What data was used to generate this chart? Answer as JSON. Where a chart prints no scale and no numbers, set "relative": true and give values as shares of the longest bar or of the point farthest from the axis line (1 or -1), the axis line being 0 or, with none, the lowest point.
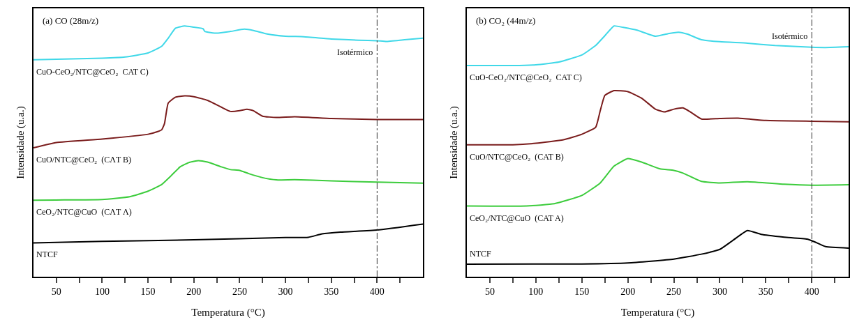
{
  "chart_data": [
    {
      "type": "line",
      "relative": true,
      "title": "(a) CO (28m/z)",
      "xlabel": "Temperatura (°C)",
      "ylabel": "Intensidade (u.a.)",
      "xlim": [
        25,
        450
      ],
      "xticks": [
        50,
        {
          "value": 75,
          "label": null
        },
        100,
        {
          "value": 125,
          "label": null
        },
        150,
        {
          "value": 175,
          "label": null
        },
        200,
        {
          "value": 225,
          "label": null
        },
        250,
        {
          "value": 275,
          "label": null
        },
        300,
        {
          "value": 325,
          "label": null
        },
        350,
        {
          "value": 375,
          "label": null
        },
        400,
        {
          "value": 425,
          "label": null
        }
      ],
      "grid": false,
      "legend": false,
      "marker": "none",
      "line_style": "solid",
      "ref_lines": [
        {
          "axis": "x",
          "value": 400,
          "label": "Isotérmico",
          "line_style": "dashed",
          "color": "#333333"
        }
      ],
      "series": [
        {
          "name": "CuO-CeO₂/NTC@CeO₂  CAT C)",
          "color": "#40d8e8",
          "x": [
            25,
            50,
            100,
            125,
            150,
            165,
            172,
            180,
            190,
            200,
            210,
            212,
            225,
            240,
            255,
            265,
            280,
            300,
            320,
            350,
            380,
            400,
            410,
            430,
            450
          ],
          "values": [
            0.865,
            0.867,
            0.871,
            0.876,
            0.892,
            0.919,
            0.951,
            0.991,
            1,
            0.995,
            0.989,
            0.978,
            0.971,
            0.978,
            0.987,
            0.982,
            0.968,
            0.959,
            0.957,
            0.948,
            0.943,
            0.941,
            0.938,
            0.945,
            0.951
          ]
        },
        {
          "name": "CuO/NTC@CeO₂  (CΛT B)",
          "color": "#7a1c1c",
          "x": [
            25,
            50,
            100,
            150,
            160,
            165,
            168,
            172,
            180,
            190,
            200,
            215,
            230,
            240,
            250,
            258,
            265,
            275,
            290,
            310,
            350,
            400,
            450
          ],
          "values": [
            0.514,
            0.535,
            0.549,
            0.568,
            0.578,
            0.586,
            0.611,
            0.692,
            0.716,
            0.721,
            0.718,
            0.703,
            0.676,
            0.659,
            0.662,
            0.668,
            0.662,
            0.64,
            0.635,
            0.638,
            0.631,
            0.627,
            0.627
          ]
        },
        {
          "name": "CeO₂/NTC@CuO  (CΛT Λ)",
          "color": "#3ccc3c",
          "x": [
            25,
            50,
            100,
            130,
            150,
            165,
            175,
            185,
            195,
            205,
            215,
            230,
            240,
            250,
            260,
            275,
            290,
            310,
            350,
            400,
            450
          ],
          "values": [
            0.305,
            0.306,
            0.308,
            0.319,
            0.341,
            0.368,
            0.402,
            0.438,
            0.456,
            0.463,
            0.457,
            0.438,
            0.427,
            0.424,
            0.411,
            0.395,
            0.386,
            0.387,
            0.382,
            0.377,
            0.373
          ]
        },
        {
          "name": "NTCF",
          "color": "#000000",
          "x": [
            25,
            100,
            200,
            300,
            325,
            340,
            360,
            400,
            450
          ],
          "values": [
            0.135,
            0.141,
            0.147,
            0.156,
            0.157,
            0.171,
            0.178,
            0.186,
            0.21
          ]
        }
      ]
    },
    {
      "type": "line",
      "relative": true,
      "title": "(b) CO₂ (44m/z)",
      "xlabel": "Temperatura (°C)",
      "ylabel": "Intensidade (u.a.)",
      "xlim": [
        25,
        440
      ],
      "xticks": [
        50,
        {
          "value": 75,
          "label": null
        },
        100,
        {
          "value": 125,
          "label": null
        },
        150,
        {
          "value": 175,
          "label": null
        },
        200,
        {
          "value": 225,
          "label": null
        },
        250,
        {
          "value": 275,
          "label": null
        },
        300,
        {
          "value": 325,
          "label": null
        },
        350,
        {
          "value": 375,
          "label": null
        },
        400,
        {
          "value": 425,
          "label": null
        }
      ],
      "grid": false,
      "legend": false,
      "marker": "none",
      "line_style": "solid",
      "ref_lines": [
        {
          "axis": "x",
          "value": 400,
          "label": "Isotérmico",
          "line_style": "dashed",
          "color": "#333333"
        }
      ],
      "series": [
        {
          "name": "CuO-CeO₂/NTC@CeO₂  CAT C)",
          "color": "#40d8e8",
          "x": [
            25,
            75,
            100,
            125,
            150,
            165,
            175,
            185,
            195,
            210,
            230,
            245,
            255,
            265,
            280,
            300,
            330,
            360,
            400,
            415,
            440
          ],
          "values": [
            0.842,
            0.842,
            0.845,
            0.856,
            0.884,
            0.922,
            0.961,
            1,
            0.994,
            0.983,
            0.959,
            0.97,
            0.975,
            0.967,
            0.945,
            0.937,
            0.931,
            0.922,
            0.915,
            0.914,
            0.917
          ]
        },
        {
          "name": "CuO/NTC@CeO₂  (CAT B)",
          "color": "#7a1c1c",
          "x": [
            25,
            75,
            100,
            130,
            150,
            165,
            170,
            175,
            185,
            200,
            215,
            230,
            240,
            250,
            260,
            268,
            280,
            300,
            320,
            350,
            400,
            440
          ],
          "values": [
            0.526,
            0.526,
            0.532,
            0.546,
            0.568,
            0.596,
            0.662,
            0.723,
            0.742,
            0.738,
            0.712,
            0.668,
            0.657,
            0.668,
            0.673,
            0.657,
            0.629,
            0.631,
            0.632,
            0.623,
            0.62,
            0.618
          ]
        },
        {
          "name": "CeO₂/NTC@CuO  (CAT A)",
          "color": "#3ccc3c",
          "x": [
            25,
            90,
            120,
            150,
            170,
            185,
            200,
            215,
            235,
            250,
            260,
            280,
            300,
            330,
            370,
            400,
            440
          ],
          "values": [
            0.282,
            0.282,
            0.291,
            0.324,
            0.374,
            0.441,
            0.471,
            0.457,
            0.43,
            0.424,
            0.413,
            0.38,
            0.374,
            0.379,
            0.369,
            0.365,
            0.367
          ]
        },
        {
          "name": "NTCF",
          "color": "#000000",
          "x": [
            25,
            150,
            200,
            250,
            280,
            300,
            315,
            330,
            345,
            370,
            395,
            405,
            415,
            440
          ],
          "values": [
            0.05,
            0.051,
            0.055,
            0.07,
            0.09,
            0.109,
            0.147,
            0.184,
            0.169,
            0.158,
            0.15,
            0.136,
            0.12,
            0.114
          ]
        }
      ]
    }
  ]
}
